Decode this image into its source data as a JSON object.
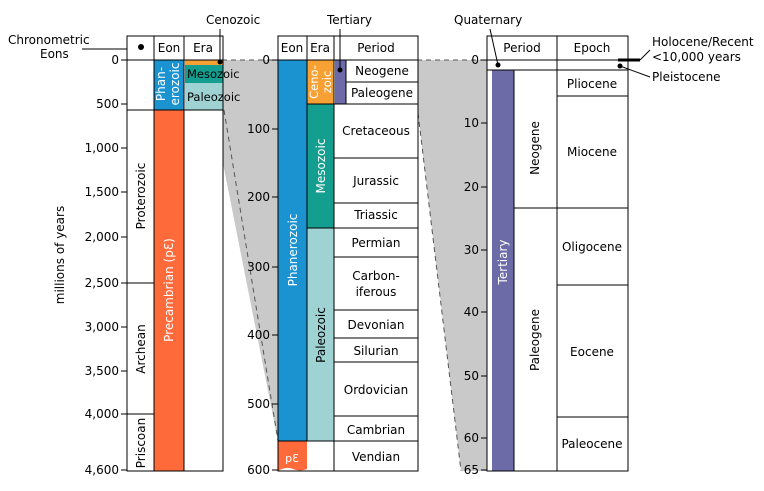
{
  "colors": {
    "phanerozoic": "#1a93d0",
    "precambrian": "#ff6a3a",
    "mesozoic_era": "#139e8f",
    "paleozoic_era": "#9fd3d3",
    "cenozoic_era": "#f7a135",
    "tertiary": "#6c6aa7",
    "zoom_fill": "#c9c9c9"
  },
  "labels": {
    "chronometric": "Chronometric",
    "eons": "Eons",
    "cenozoic": "Cenozoic",
    "tertiary_top": "Tertiary",
    "quaternary": "Quaternary",
    "holocene": "Holocene/Recent",
    "holocene_years": "<10,000 years",
    "pleistocene": "Pleistocene",
    "y_axis": "millions of years"
  },
  "panel1": {
    "headers": {
      "eon": "Eon",
      "era": "Era"
    },
    "ticks": [
      "0",
      "500",
      "1,000",
      "1,500",
      "2,000",
      "2,500",
      "3,000",
      "3,500",
      "4,000",
      "4,600"
    ],
    "chronometric_eons": [
      "Priscoan",
      "Archean",
      "Proterozoic"
    ],
    "eon_labels": {
      "phanerozoic_line1": "Phan-",
      "phanerozoic_line2": "erozoic",
      "precambrian": "Precambrian (pƐ)"
    },
    "era_labels": {
      "mesozoic": "Mesozoic",
      "paleozoic": "Paleozoic"
    }
  },
  "panel2": {
    "headers": {
      "eon": "Eon",
      "era": "Era",
      "period": "Period"
    },
    "ticks": [
      "0",
      "100",
      "200",
      "300",
      "400",
      "500",
      "600"
    ],
    "eon_labels": {
      "phanerozoic": "Phanerozoic",
      "pe": "pƐ"
    },
    "era_labels": {
      "cenozoic_line1": "Ceno-",
      "cenozoic_line2": "zoic",
      "mesozoic": "Mesozoic",
      "paleozoic": "Paleozoic"
    },
    "periods": [
      "Neogene",
      "Paleogene",
      "Cretaceous",
      "Jurassic",
      "Triassic",
      "Permian",
      "Carbon-",
      "iferous",
      "Devonian",
      "Silurian",
      "Ordovician",
      "Cambrian",
      "Vendian"
    ]
  },
  "panel3": {
    "headers": {
      "period": "Period",
      "epoch": "Epoch"
    },
    "ticks": [
      "0",
      "10",
      "20",
      "30",
      "40",
      "50",
      "60",
      "65"
    ],
    "tertiary": "Tertiary",
    "periods": [
      "Neogene",
      "Paleogene"
    ],
    "epochs": [
      "Pliocene",
      "Miocene",
      "Oligocene",
      "Eocene",
      "Paleocene"
    ]
  }
}
